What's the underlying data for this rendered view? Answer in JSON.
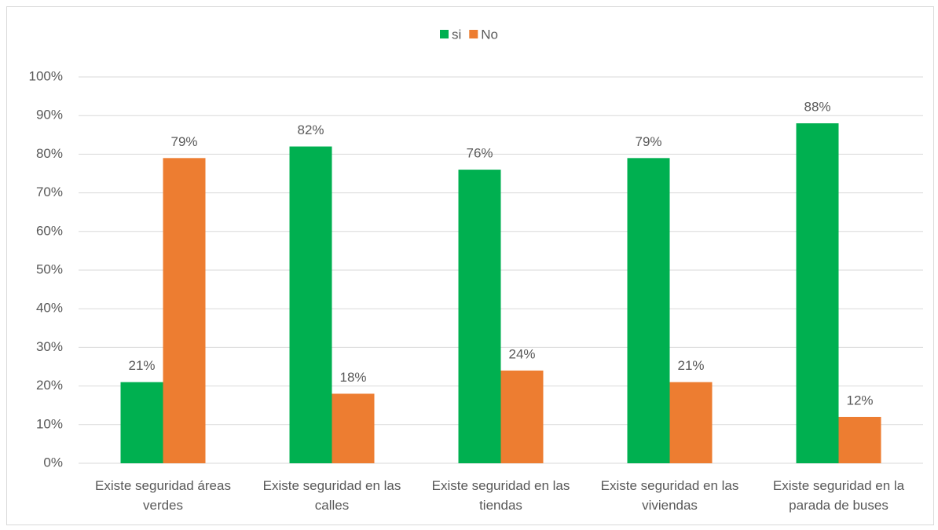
{
  "chart_data": {
    "type": "bar",
    "categories": [
      "Existe seguridad áreas verdes",
      "Existe seguridad en las calles",
      "Existe seguridad en las tiendas",
      "Existe seguridad en las viviendas",
      "Existe seguridad en la parada de buses"
    ],
    "series": [
      {
        "name": "si",
        "color": "#00b050",
        "values": [
          21,
          82,
          76,
          79,
          88
        ],
        "value_labels": [
          "21%",
          "82%",
          "76%",
          "79%",
          "88%"
        ]
      },
      {
        "name": "No",
        "color": "#ed7d31",
        "values": [
          79,
          18,
          24,
          21,
          12
        ],
        "value_labels": [
          "79%",
          "18%",
          "24%",
          "21%",
          "12%"
        ]
      }
    ],
    "ylim": [
      0,
      100
    ],
    "yticks": [
      {
        "value": 0,
        "label": "0%"
      },
      {
        "value": 10,
        "label": "10%"
      },
      {
        "value": 20,
        "label": "20%"
      },
      {
        "value": 30,
        "label": "30%"
      },
      {
        "value": 40,
        "label": "40%"
      },
      {
        "value": 50,
        "label": "50%"
      },
      {
        "value": 60,
        "label": "60%"
      },
      {
        "value": 70,
        "label": "70%"
      },
      {
        "value": 80,
        "label": "80%"
      },
      {
        "value": 90,
        "label": "90%"
      },
      {
        "value": 100,
        "label": "100%"
      }
    ],
    "grid": true,
    "legend": "top"
  }
}
